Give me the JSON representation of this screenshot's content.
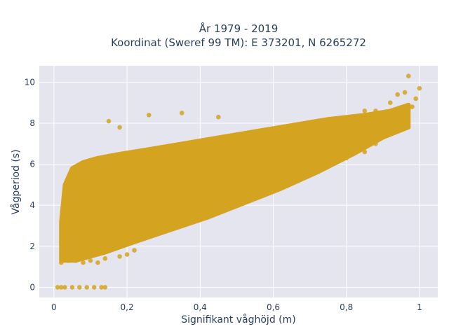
{
  "chart_data": {
    "type": "scatter",
    "title": "År 1979 - 2019",
    "subtitle": "Koordinat (Sweref 99 TM): E 373201, N 6265272",
    "xlabel": "Signifikant våghöjd (m)",
    "ylabel": "Vågperiod (s)",
    "xlim": [
      -0.04,
      1.05
    ],
    "ylim": [
      -0.5,
      10.8
    ],
    "x_ticks": [
      0,
      0.2,
      0.4,
      0.6,
      0.8,
      1
    ],
    "x_tick_labels": [
      "0",
      "0,2",
      "0,4",
      "0,6",
      "0,8",
      "1"
    ],
    "y_ticks": [
      0,
      2,
      4,
      6,
      8,
      10
    ],
    "y_tick_labels": [
      "0",
      "2",
      "4",
      "6",
      "8",
      "10"
    ],
    "grid": true,
    "legend": "none",
    "marker_color": "#D4A320",
    "plot_background": "#E5E5F0",
    "series": [
      {
        "x": [
          0.01,
          0.02,
          0.03,
          0.05,
          0.07,
          0.09,
          0.11,
          0.13,
          0.14,
          0.02,
          0.04,
          0.06,
          0.08,
          0.1,
          0.12,
          0.14,
          0.18,
          0.2,
          0.22,
          0.02,
          0.04,
          0.05,
          0.07,
          0.08,
          0.1,
          0.12,
          0.13,
          0.15,
          0.17,
          0.04,
          0.06,
          0.08,
          0.11,
          0.14,
          0.16,
          0.19,
          0.06,
          0.09,
          0.12,
          0.15,
          0.18,
          0.21,
          0.08,
          0.12,
          0.16,
          0.2,
          0.24,
          0.12,
          0.17,
          0.22,
          0.27,
          0.19,
          0.25,
          0.3,
          0.36,
          0.28,
          0.34,
          0.4,
          0.46,
          0.32,
          0.4,
          0.48,
          0.55,
          0.45,
          0.53,
          0.6,
          0.65,
          0.55,
          0.62,
          0.7,
          0.75,
          0.66,
          0.72,
          0.78,
          0.82,
          0.75,
          0.8,
          0.85,
          0.88,
          0.85,
          0.9,
          0.93,
          0.96,
          0.98,
          0.99,
          1.0,
          0.85,
          0.88,
          0.92,
          0.94,
          0.96,
          0.97,
          0.15,
          0.18,
          0.26,
          0.35,
          0.45,
          0.5
        ],
        "y": [
          0.0,
          0.0,
          0.0,
          0.0,
          0.0,
          0.0,
          0.0,
          0.0,
          0.0,
          1.2,
          1.3,
          1.3,
          1.2,
          1.3,
          1.2,
          1.4,
          1.5,
          1.6,
          1.8,
          2.2,
          2.8,
          3.5,
          4.2,
          5.0,
          5.6,
          6.0,
          6.2,
          6.4,
          6.3,
          2.5,
          3.2,
          4.0,
          4.6,
          5.2,
          5.8,
          6.2,
          1.6,
          2.4,
          3.0,
          3.6,
          4.3,
          5.0,
          1.5,
          2.0,
          2.6,
          3.1,
          3.7,
          4.0,
          4.8,
          5.4,
          6.0,
          2.2,
          2.8,
          3.4,
          4.0,
          5.5,
          6.0,
          6.5,
          6.8,
          3.0,
          3.5,
          4.1,
          4.8,
          5.8,
          6.3,
          6.8,
          7.2,
          4.8,
          5.2,
          5.6,
          6.0,
          7.2,
          7.5,
          7.8,
          8.0,
          6.0,
          6.3,
          6.6,
          7.0,
          7.6,
          7.9,
          8.2,
          8.5,
          8.8,
          9.2,
          9.7,
          8.6,
          8.6,
          9.0,
          9.4,
          9.5,
          10.3,
          8.1,
          7.8,
          8.4,
          8.5,
          8.3,
          7.0
        ]
      }
    ]
  }
}
